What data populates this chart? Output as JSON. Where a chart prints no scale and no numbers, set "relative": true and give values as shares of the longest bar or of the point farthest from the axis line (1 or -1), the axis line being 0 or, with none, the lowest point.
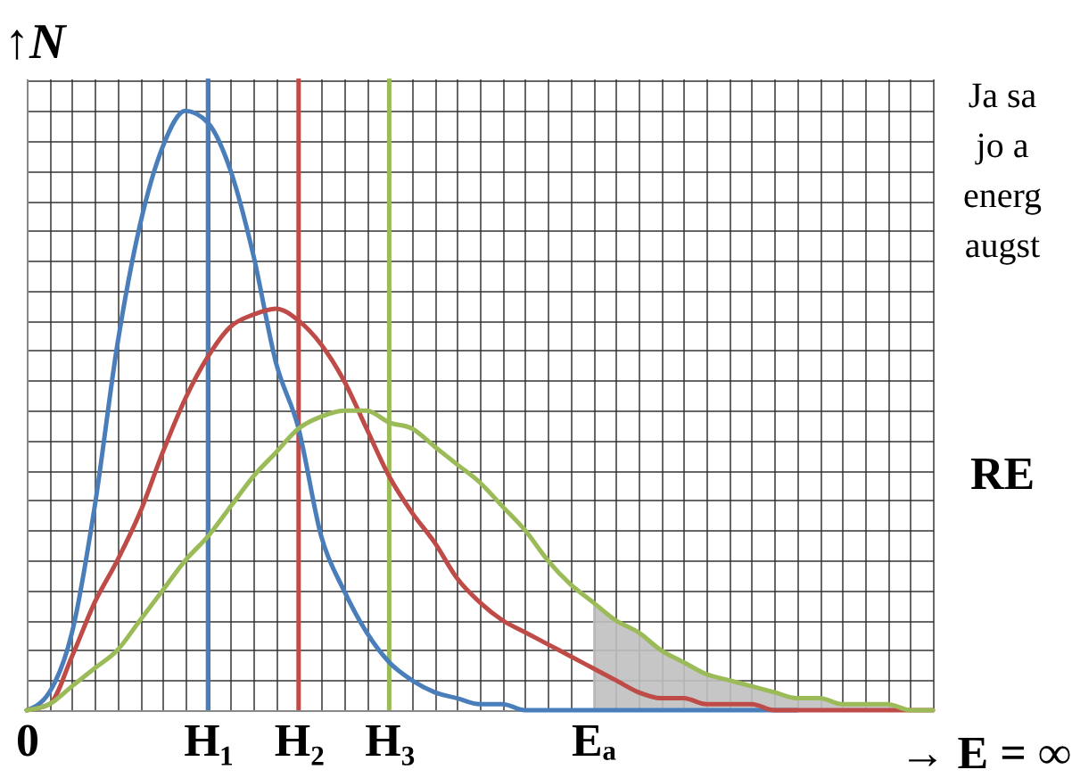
{
  "chart_data": {
    "type": "line",
    "relative": true,
    "xlabel": "→ E = ∞",
    "ylabel": "↑N",
    "grid": true,
    "categories": [
      "0",
      null,
      null,
      null,
      null,
      null,
      null,
      null,
      "H₁",
      null,
      null,
      null,
      "H₂",
      null,
      null,
      null,
      "H₃",
      null,
      null,
      null,
      null,
      null,
      null,
      null,
      null,
      "Eₐ",
      null,
      null,
      null,
      null,
      null,
      null,
      null,
      null,
      null,
      null,
      null,
      null,
      null,
      null,
      null
    ],
    "series": [
      {
        "type": "area",
        "color": "#c0c0c0",
        "values": [
          null,
          null,
          null,
          null,
          null,
          null,
          null,
          null,
          null,
          null,
          null,
          null,
          null,
          null,
          null,
          null,
          null,
          null,
          null,
          null,
          null,
          null,
          null,
          null,
          null,
          0.18,
          0.15,
          0.13,
          0.1,
          0.08,
          0.06,
          0.05,
          0.04,
          0.03,
          0.02,
          0.02,
          0.01,
          0.01,
          0.01,
          0.0,
          0
        ]
      },
      {
        "color": "#4a7ebb",
        "values": [
          0,
          0.03,
          0.13,
          0.34,
          0.61,
          0.81,
          0.94,
          1,
          0.98,
          0.9,
          0.76,
          0.58,
          0.47,
          0.29,
          0.2,
          0.13,
          0.08,
          0.05,
          0.03,
          0.02,
          0.01,
          0.01,
          0,
          0,
          0,
          0,
          0,
          0,
          0,
          0,
          0,
          0,
          0,
          0,
          0,
          null,
          null,
          null,
          null,
          null,
          null
        ]
      },
      {
        "color": "#be4b48",
        "values": [
          0,
          0.01,
          0.09,
          0.18,
          0.25,
          0.33,
          0.43,
          0.52,
          0.59,
          0.64,
          0.66,
          0.67,
          0.65,
          0.61,
          0.55,
          0.47,
          0.39,
          0.33,
          0.28,
          0.22,
          0.18,
          0.15,
          0.13,
          0.11,
          0.09,
          0.07,
          0.05,
          0.03,
          0.02,
          0.02,
          0.01,
          0.01,
          0.01,
          0,
          0,
          0,
          0,
          0,
          0,
          0,
          0
        ]
      },
      {
        "color": "#9bbb59",
        "values": [
          0,
          0.01,
          0.04,
          0.07,
          0.1,
          0.15,
          0.2,
          0.25,
          0.29,
          0.34,
          0.39,
          0.43,
          0.47,
          0.49,
          0.5,
          0.5,
          0.48,
          0.47,
          0.44,
          0.41,
          0.38,
          0.34,
          0.3,
          0.25,
          0.21,
          0.18,
          0.15,
          0.13,
          0.1,
          0.08,
          0.06,
          0.05,
          0.04,
          0.03,
          0.02,
          0.02,
          0.01,
          0.01,
          0.01,
          0.0,
          0
        ]
      }
    ],
    "ref_lines": [
      {
        "axis": "x",
        "value": "H₁",
        "color": "#4a7ebb"
      },
      {
        "axis": "x",
        "value": "H₂",
        "color": "#be4b48"
      },
      {
        "axis": "x",
        "value": "H₃",
        "color": "#9bbb59"
      }
    ],
    "annotations": [
      "Ja sa",
      "jo a",
      "energ",
      "augst",
      "RE"
    ]
  }
}
